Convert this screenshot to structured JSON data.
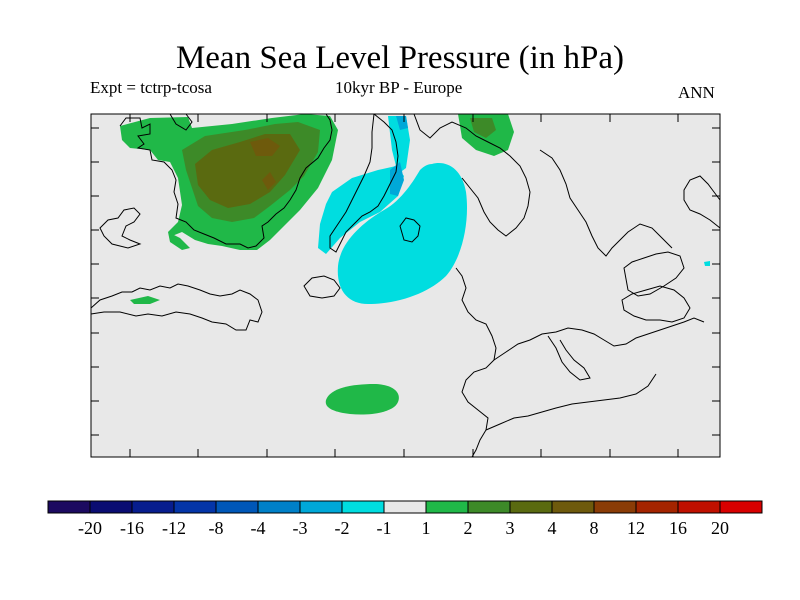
{
  "title": "Mean Sea Level Pressure (in hPa)",
  "experiment_label": "Expt = tctrp-tcosa",
  "period_label": "10kyr BP - Europe",
  "season_label": "ANN",
  "colors": {
    "land_ocean_background": "#e8e8e8",
    "coastline": "#000000",
    "level_minus_1_to_minus_2": "#00dde0",
    "level_minus_2_to_minus_3": "#00a8d8",
    "level_1_to_2": "#20b848",
    "level_2_to_3": "#3d8a28",
    "level_3_to_4": "#5a6a10",
    "level_4_to_8": "#6e5a0c"
  },
  "colorbar": {
    "tick_labels": [
      "-20",
      "-16",
      "-12",
      "-8",
      "-4",
      "-3",
      "-2",
      "-1",
      "1",
      "2",
      "3",
      "4",
      "8",
      "12",
      "16",
      "20"
    ],
    "bin_colors": [
      "#1c0a60",
      "#0a0c72",
      "#071d8e",
      "#0435a8",
      "#0057b8",
      "#0080c8",
      "#00a8d8",
      "#00dde0",
      "#e8e8e8",
      "#20b848",
      "#3d8a28",
      "#5a6a10",
      "#6e5a0c",
      "#8a3c06",
      "#a42400",
      "#c01000",
      "#d80000"
    ]
  }
}
